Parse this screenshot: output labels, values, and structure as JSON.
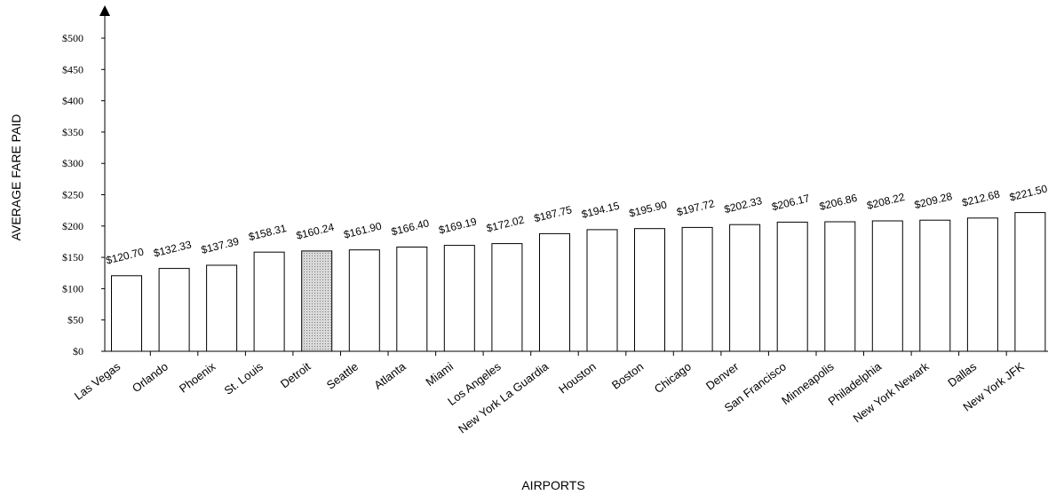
{
  "chart_data": {
    "type": "bar",
    "xlabel": "AIRPORTS",
    "ylabel": "AVERAGE FARE PAID",
    "ylim": [
      0,
      500
    ],
    "yticks": [
      "$0",
      "$50",
      "$100",
      "$150",
      "$200",
      "$250",
      "$300",
      "$350",
      "$400",
      "$450",
      "$500"
    ],
    "ytick_values": [
      0,
      50,
      100,
      150,
      200,
      250,
      300,
      350,
      400,
      450,
      500
    ],
    "grid": false,
    "categories": [
      "Las Vegas",
      "Orlando",
      "Phoenix",
      "St. Louis",
      "Detroit",
      "Seattle",
      "Atlanta",
      "Miami",
      "Los Angeles",
      "New York La Guardia",
      "Houston",
      "Boston",
      "Chicago",
      "Denver",
      "San Francisco",
      "Minneapolis",
      "Philadelphia",
      "New York Newark",
      "Dallas",
      "New York JFK"
    ],
    "values": [
      120.7,
      132.33,
      137.39,
      158.31,
      160.24,
      161.9,
      166.4,
      169.19,
      172.02,
      187.75,
      194.15,
      195.9,
      197.72,
      202.33,
      206.17,
      206.86,
      208.22,
      209.28,
      212.68,
      221.5
    ],
    "value_labels": [
      "$120.70",
      "$132.33",
      "$137.39",
      "$158.31",
      "$160.24",
      "$161.90",
      "$166.40",
      "$169.19",
      "$172.02",
      "$187.75",
      "$194.15",
      "$195.90",
      "$197.72",
      "$202.33",
      "$206.17",
      "$206.86",
      "$208.22",
      "$209.28",
      "$212.68",
      "$221.50"
    ],
    "highlight_category": "Detroit",
    "colors": {
      "bar_fill": "#ffffff",
      "highlight_fill": "#bdbdbd",
      "stroke": "#000000"
    }
  }
}
